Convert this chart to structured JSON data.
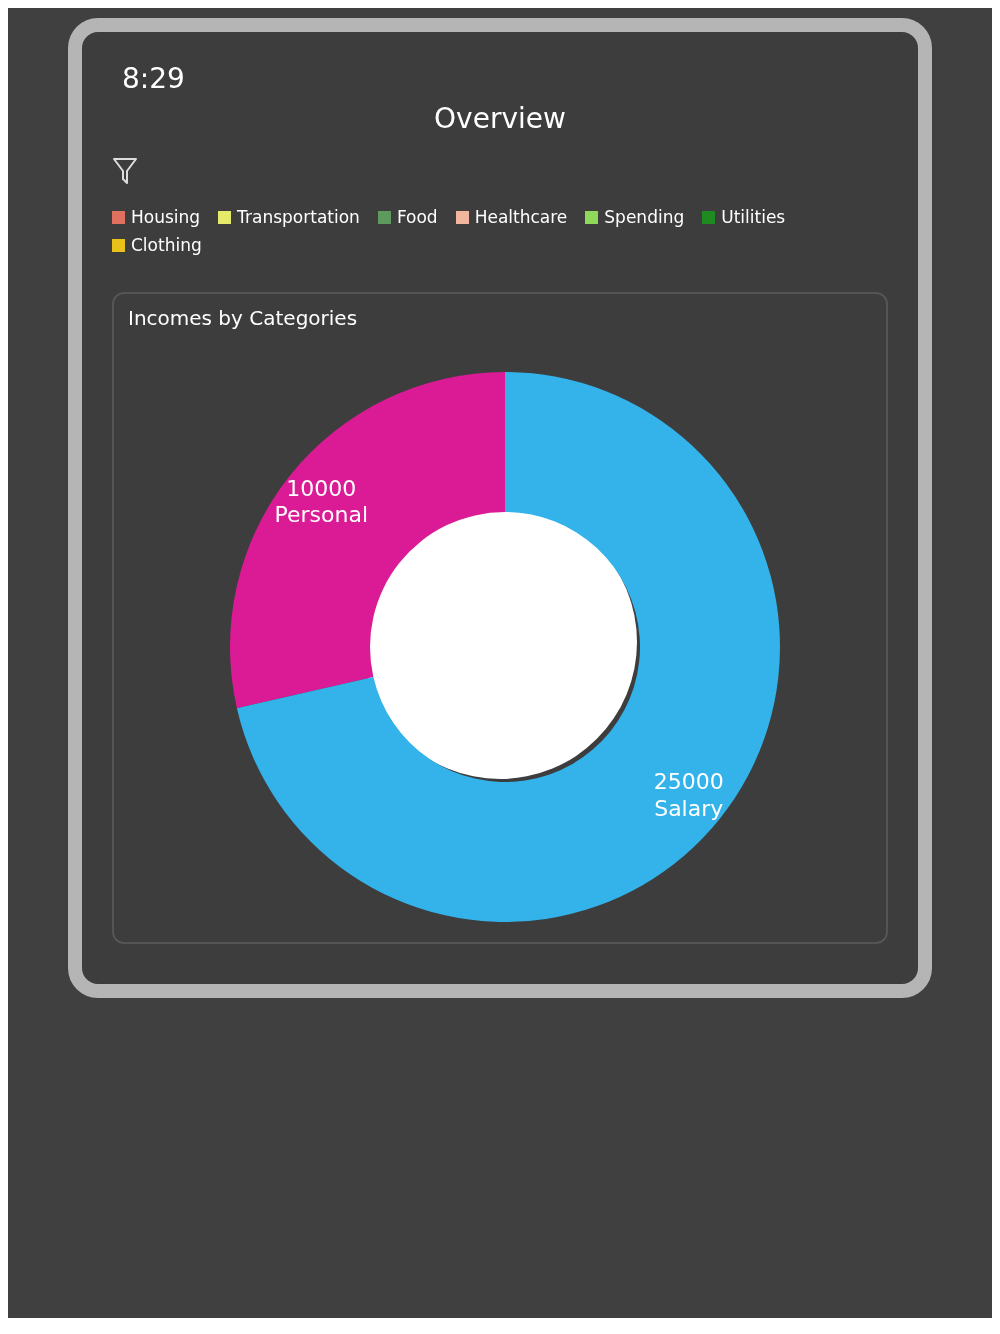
{
  "chart_data": [
    {
      "type": "other",
      "title": "Overview",
      "annotations": [
        "8:29"
      ],
      "categories": [
        "Housing",
        "Transportation",
        "Food",
        "Healthcare",
        "Spending",
        "Utilities",
        "Clothing"
      ],
      "colors": [
        "#e0705f",
        "#e6ea6a",
        "#5e9a5e",
        "#f2b59e",
        "#8fd85a",
        "#1f8a1f",
        "#e8c21a"
      ]
    },
    {
      "type": "donut",
      "title": "Incomes by Categories",
      "categories": [
        "Personal",
        "Salary"
      ],
      "values": [
        10000,
        25000
      ],
      "colors": [
        "#db1a96",
        "#33b3ea"
      ],
      "data_labels": true
    }
  ]
}
